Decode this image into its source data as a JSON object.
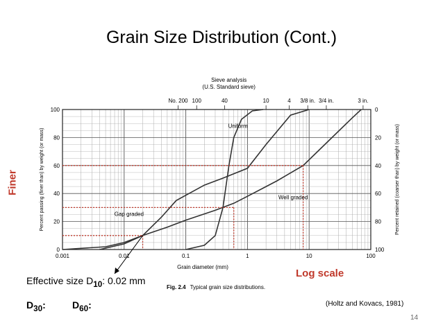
{
  "slide": {
    "title": "Grain Size Distribution (Cont.)",
    "finer_label": "Finer",
    "log_scale_label": "Log scale",
    "effective_size_prefix": "Effective size D",
    "effective_size_sub": "10",
    "effective_size_value": ": 0.02 mm",
    "d30_label": "D",
    "d30_sub": "30",
    "d30_colon": ":",
    "d60_label": "D",
    "d60_sub": "60",
    "d60_colon": ":",
    "citation": "(Holtz and Kovacs, 1981)",
    "page_number": "14",
    "fig_number": "Fig. 2.4",
    "fig_caption": "Typical grain size distributions."
  },
  "colors": {
    "highlight": "#c0392b",
    "curve": "#333333",
    "grid": "#999999"
  },
  "chart_data": {
    "type": "line",
    "x_scale": "log",
    "xlim": [
      0.001,
      100
    ],
    "ylim": [
      0,
      100
    ],
    "xlabel": "Grain diameter (mm)",
    "ylabel_left": "Percent passing (finer than) by weight (or mass)",
    "ylabel_right": "Percent retained (coarser than) by weight (or mass)",
    "top_title": "Sieve analysis",
    "top_subtitle": "(U.S. Standard sieve)",
    "x_ticks": [
      0.001,
      0.01,
      0.1,
      1,
      10,
      100
    ],
    "x_tick_labels": [
      "0.001",
      "0.01",
      "0.1",
      "1",
      "10",
      "100"
    ],
    "y_ticks": [
      0,
      20,
      40,
      60,
      80,
      100
    ],
    "y_tick_labels": [
      "0",
      "20",
      "40",
      "60",
      "80",
      "100"
    ],
    "y_right_tick_labels": [
      "100",
      "80",
      "60",
      "40",
      "20",
      "0"
    ],
    "sieves": [
      {
        "label": "No. 200",
        "size": 0.075
      },
      {
        "label": "100",
        "size": 0.15
      },
      {
        "label": "40",
        "size": 0.425
      },
      {
        "label": "10",
        "size": 2.0
      },
      {
        "label": "4",
        "size": 4.75
      },
      {
        "label": "3/8 in.",
        "size": 9.5
      },
      {
        "label": "3/4 in.",
        "size": 19
      },
      {
        "label": "3 in.",
        "size": 75
      }
    ],
    "series": [
      {
        "name": "Uniform",
        "x": [
          0.1,
          0.2,
          0.3,
          0.4,
          0.5,
          0.6,
          0.8,
          1.2,
          1.8
        ],
        "y": [
          0,
          3,
          10,
          30,
          60,
          80,
          93,
          99,
          100
        ]
      },
      {
        "name": "Well graded",
        "x": [
          0.004,
          0.01,
          0.02,
          0.05,
          0.1,
          0.3,
          0.6,
          1.0,
          3.0,
          8.0,
          20,
          50,
          70
        ],
        "y": [
          0,
          4,
          10,
          16,
          21,
          28,
          33,
          38,
          49,
          60,
          77,
          94,
          100
        ]
      },
      {
        "name": "Gap graded",
        "x": [
          0.001,
          0.005,
          0.01,
          0.02,
          0.04,
          0.07,
          0.2,
          0.4,
          1.0,
          2.0,
          5.0,
          10.0
        ],
        "y": [
          0,
          2,
          5,
          10,
          23,
          35,
          46,
          51,
          58,
          75,
          96,
          100
        ]
      }
    ],
    "series_labels": [
      "Uniform",
      "Well graded",
      "Gap graded"
    ],
    "annotations": [
      {
        "x": 0.02,
        "y": 10
      },
      {
        "x": 0.6,
        "y": 30
      },
      {
        "x": 8.0,
        "y": 60
      }
    ]
  }
}
